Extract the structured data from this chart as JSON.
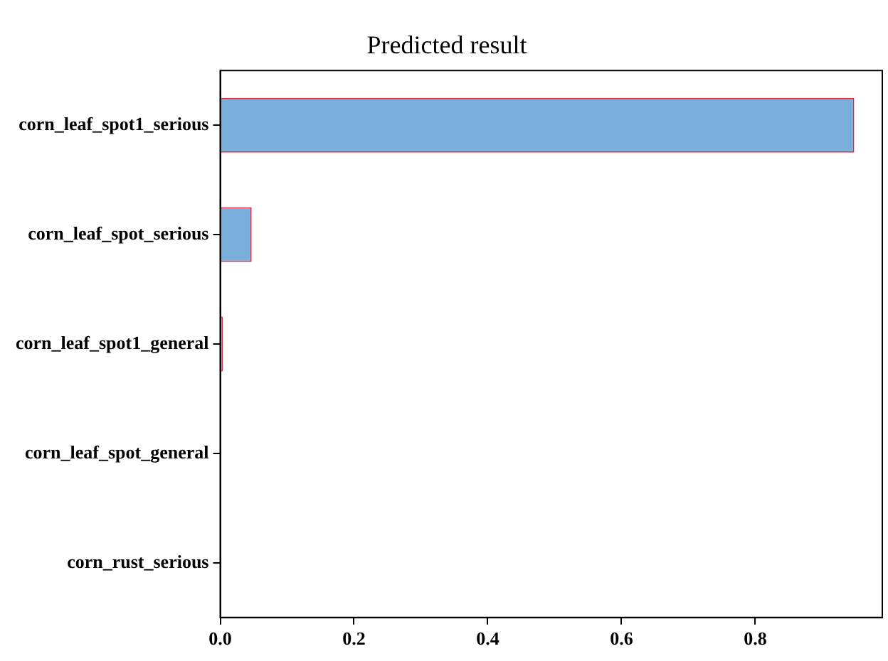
{
  "chart_data": {
    "type": "bar",
    "orientation": "horizontal",
    "title": "Predicted result",
    "categories": [
      "corn_leaf_spot1_serious",
      "corn_leaf_spot_serious",
      "corn_leaf_spot1_general",
      "corn_leaf_spot_general",
      "corn_rust_serious"
    ],
    "values": [
      0.948,
      0.047,
      0.004,
      0,
      0
    ],
    "color": "#7aaedb",
    "xlim": [
      0,
      0.99
    ],
    "xticks": [
      {
        "value": 0,
        "label": "0.0"
      },
      {
        "value": 0.2,
        "label": "0.2"
      },
      {
        "value": 0.4,
        "label": "0.4"
      },
      {
        "value": 0.6,
        "label": "0.6"
      },
      {
        "value": 0.8,
        "label": "0.8"
      }
    ],
    "grid": false,
    "legend": false
  }
}
